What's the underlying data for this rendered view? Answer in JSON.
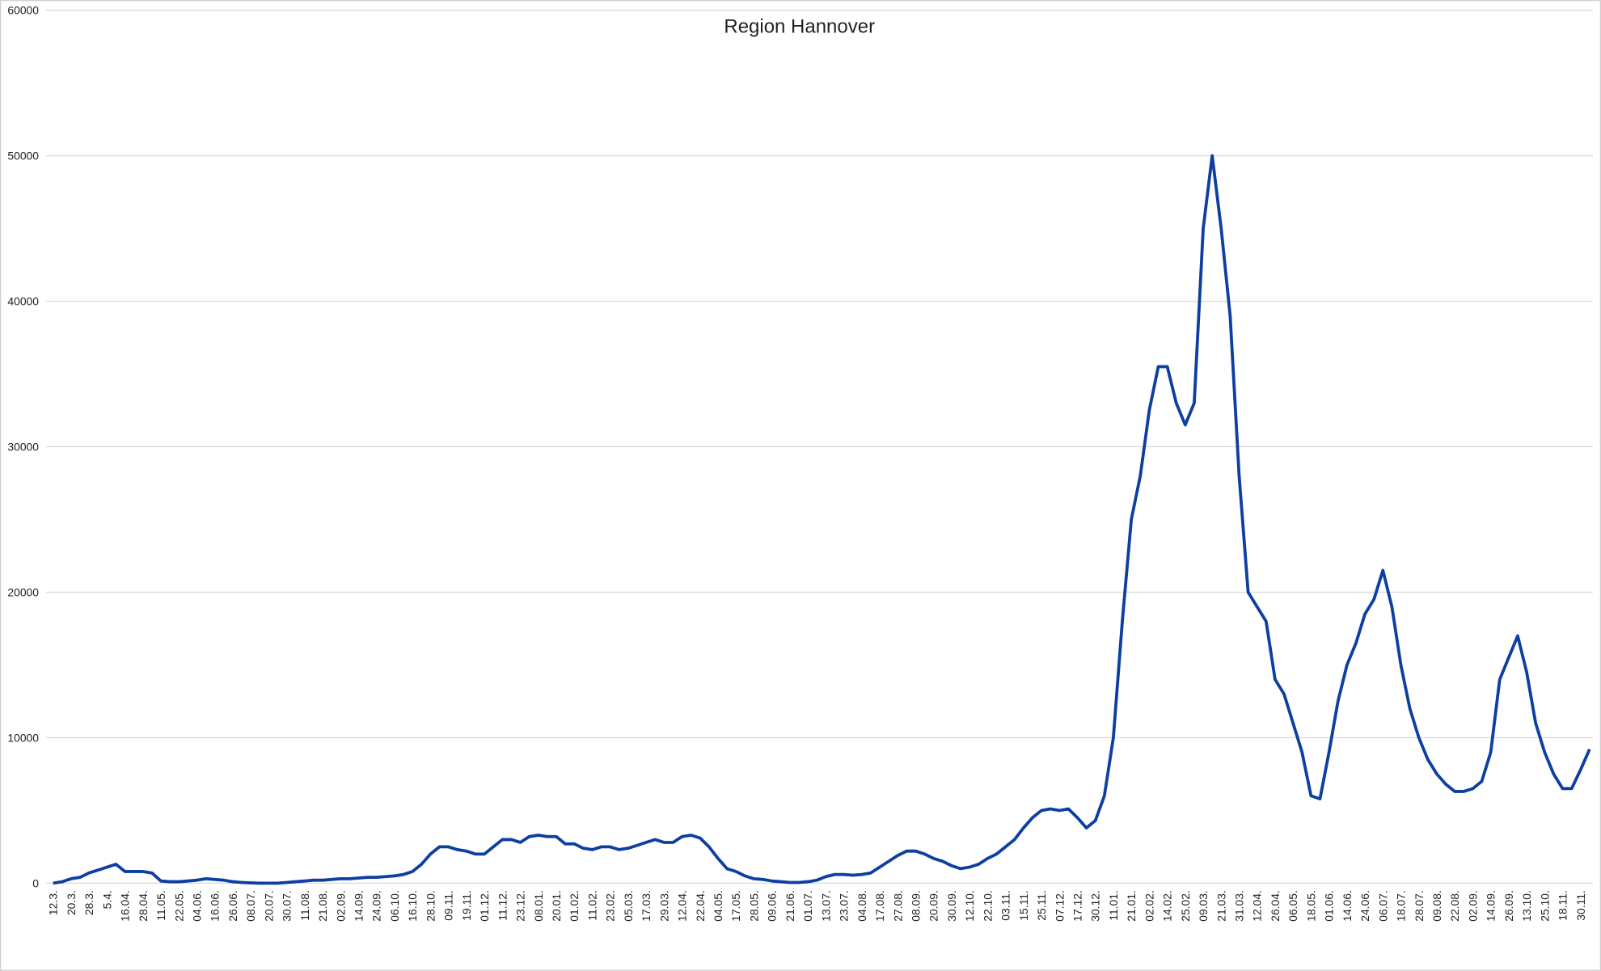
{
  "chart_data": {
    "type": "line",
    "title": "Region Hannover",
    "categories": [
      "12.3.",
      null,
      "20.3.",
      null,
      "28.3.",
      null,
      "5.4.",
      null,
      "16.04.",
      null,
      "28.04.",
      null,
      "11.05.",
      null,
      "22.05.",
      null,
      "04.06.",
      null,
      "16.06.",
      null,
      "26.06.",
      null,
      "08.07.",
      null,
      "20.07.",
      null,
      "30.07.",
      null,
      "11.08.",
      null,
      "21.08.",
      null,
      "02.09.",
      null,
      "14.09.",
      null,
      "24.09.",
      null,
      "06.10.",
      null,
      "16.10.",
      null,
      "28.10.",
      null,
      "09.11.",
      null,
      "19.11.",
      null,
      "01.12.",
      null,
      "11.12.",
      null,
      "23.12.",
      null,
      "08.01.",
      null,
      "20.01.",
      null,
      "01.02.",
      null,
      "11.02.",
      null,
      "23.02.",
      null,
      "05.03.",
      null,
      "17.03.",
      null,
      "29.03.",
      null,
      "12.04.",
      null,
      "22.04.",
      null,
      "04.05.",
      null,
      "17.05.",
      null,
      "28.05.",
      null,
      "09.06.",
      null,
      "21.06.",
      null,
      "01.07.",
      null,
      "13.07.",
      null,
      "23.07.",
      null,
      "04.08.",
      null,
      "17.08.",
      null,
      "27.08.",
      null,
      "08.09.",
      null,
      "20.09.",
      null,
      "30.09.",
      null,
      "12.10.",
      null,
      "22.10.",
      null,
      "03.11.",
      null,
      "15.11.",
      null,
      "25.11.",
      null,
      "07.12.",
      null,
      "17.12.",
      null,
      "30.12.",
      null,
      "11.01.",
      null,
      "21.01.",
      null,
      "02.02.",
      null,
      "14.02.",
      null,
      "25.02.",
      null,
      "09.03.",
      null,
      "21.03.",
      null,
      "31.03.",
      null,
      "12.04.",
      null,
      "26.04.",
      null,
      "06.05.",
      null,
      "18.05.",
      null,
      "01.06.",
      null,
      "14.06.",
      null,
      "24.06.",
      null,
      "06.07.",
      null,
      "18.07.",
      null,
      "28.07.",
      null,
      "09.08.",
      null,
      "22.08.",
      null,
      "02.09.",
      null,
      "14.09.",
      null,
      "26.09.",
      null,
      "13.10.",
      null,
      "25.10.",
      null,
      "18.11.",
      null,
      "30.11.",
      null
    ],
    "values": [
      0,
      100,
      300,
      400,
      700,
      900,
      1100,
      1300,
      800,
      800,
      800,
      700,
      150,
      100,
      100,
      150,
      200,
      300,
      250,
      200,
      100,
      50,
      20,
      0,
      0,
      0,
      50,
      100,
      150,
      200,
      200,
      250,
      300,
      300,
      350,
      400,
      400,
      450,
      500,
      600,
      800,
      1300,
      2000,
      2500,
      2500,
      2300,
      2200,
      2000,
      2000,
      2500,
      3000,
      3000,
      2800,
      3200,
      3300,
      3200,
      3200,
      2700,
      2700,
      2400,
      2300,
      2500,
      2500,
      2300,
      2400,
      2600,
      2800,
      3000,
      2800,
      2800,
      3200,
      3300,
      3100,
      2500,
      1700,
      1000,
      800,
      500,
      300,
      250,
      150,
      100,
      50,
      50,
      100,
      200,
      450,
      600,
      600,
      550,
      600,
      700,
      1100,
      1500,
      1900,
      2200,
      2200,
      2000,
      1700,
      1500,
      1200,
      1000,
      1100,
      1300,
      1700,
      2000,
      2500,
      3000,
      3800,
      4500,
      5000,
      5100,
      5000,
      5100,
      4500,
      3800,
      4300,
      6000,
      10000,
      18000,
      25000,
      28000,
      32500,
      35500,
      35500,
      33000,
      31500,
      33000,
      45000,
      50000,
      45000,
      39000,
      28000,
      20000,
      19000,
      18000,
      14000,
      13000,
      11000,
      9000,
      6000,
      5800,
      9000,
      12500,
      15000,
      16500,
      18500,
      19500,
      21500,
      19000,
      15000,
      12000,
      10000,
      8500,
      7500,
      6800,
      6300,
      6300,
      6500,
      7000,
      9000,
      14000,
      15500,
      17000,
      14500,
      11000,
      9000,
      7500,
      6500,
      6500,
      7800,
      9200
    ],
    "color": "#0d3fa3",
    "ylim": [
      0,
      60000
    ],
    "yticks": [
      0,
      10000,
      20000,
      30000,
      40000,
      50000,
      60000
    ],
    "grid": true
  }
}
